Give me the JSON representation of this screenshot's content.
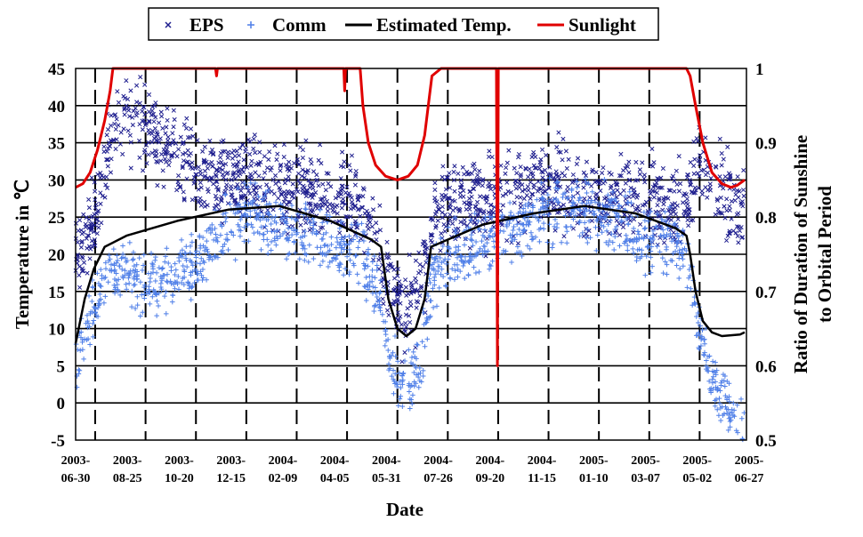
{
  "chart_data": {
    "type": "scatter",
    "title": "",
    "xlabel": "Date",
    "ylabel": "Temperature in ℃",
    "y2label_line1": "Ratio of Duration of Sunshine",
    "y2label_line2": "to Orbital Period",
    "ylim": [
      -5,
      45
    ],
    "y2lim": [
      0.5,
      1.0
    ],
    "yticks": [
      "45",
      "40",
      "35",
      "30",
      "25",
      "20",
      "15",
      "10",
      "5",
      "0",
      "-5"
    ],
    "y2ticks": [
      "1",
      "0.9",
      "0.8",
      "0.7",
      "0.6",
      "0.5"
    ],
    "x_ticks": [
      {
        "l1": "2003-",
        "l2": "06-30"
      },
      {
        "l1": "2003-",
        "l2": "08-25"
      },
      {
        "l1": "2003-",
        "l2": "10-20"
      },
      {
        "l1": "2003-",
        "l2": "12-15"
      },
      {
        "l1": "2004-",
        "l2": "02-09"
      },
      {
        "l1": "2004-",
        "l2": "04-05"
      },
      {
        "l1": "2004-",
        "l2": "05-31"
      },
      {
        "l1": "2004-",
        "l2": "07-26"
      },
      {
        "l1": "2004-",
        "l2": "09-20"
      },
      {
        "l1": "2004-",
        "l2": "11-15"
      },
      {
        "l1": "2005-",
        "l2": "01-10"
      },
      {
        "l1": "2005-",
        "l2": "03-07"
      },
      {
        "l1": "2005-",
        "l2": "05-02"
      },
      {
        "l1": "2005-",
        "l2": "06-27"
      }
    ],
    "x_range": [
      "2003-06-30",
      "2005-07-07"
    ],
    "grid": true,
    "legend_position": "top",
    "series": [
      {
        "name": "EPS",
        "kind": "scatter",
        "marker": "x",
        "color": "#1f1f8f",
        "axis": "left",
        "trend": [
          [
            "2003-06-30",
            20
          ],
          [
            "2003-07-20",
            24
          ],
          [
            "2003-08-10",
            36
          ],
          [
            "2003-08-25",
            38
          ],
          [
            "2003-09-20",
            37
          ],
          [
            "2003-10-20",
            33
          ],
          [
            "2003-11-20",
            30
          ],
          [
            "2003-12-15",
            31
          ],
          [
            "2004-01-10",
            30
          ],
          [
            "2004-02-09",
            29
          ],
          [
            "2004-03-10",
            28
          ],
          [
            "2004-04-05",
            28
          ],
          [
            "2004-05-10",
            27
          ],
          [
            "2004-05-25",
            22
          ],
          [
            "2004-06-10",
            15
          ],
          [
            "2004-06-25",
            12
          ],
          [
            "2004-07-10",
            14
          ],
          [
            "2004-07-26",
            24
          ],
          [
            "2004-08-20",
            27
          ],
          [
            "2004-09-20",
            27
          ],
          [
            "2004-10-20",
            28
          ],
          [
            "2004-11-15",
            30
          ],
          [
            "2004-12-15",
            29
          ],
          [
            "2005-01-10",
            28
          ],
          [
            "2005-02-10",
            28
          ],
          [
            "2005-03-07",
            28
          ],
          [
            "2005-04-05",
            27
          ],
          [
            "2005-05-02",
            26
          ],
          [
            "2005-05-15",
            33
          ],
          [
            "2005-06-01",
            30
          ],
          [
            "2005-06-20",
            27
          ],
          [
            "2005-07-05",
            26
          ]
        ],
        "spread": 4
      },
      {
        "name": "Comm",
        "kind": "scatter",
        "marker": "+",
        "color": "#4f7fe8",
        "axis": "left",
        "trend": [
          [
            "2003-06-30",
            5
          ],
          [
            "2003-07-15",
            12
          ],
          [
            "2003-08-10",
            18
          ],
          [
            "2003-08-25",
            17
          ],
          [
            "2003-09-20",
            16
          ],
          [
            "2003-10-20",
            17
          ],
          [
            "2003-11-20",
            20
          ],
          [
            "2003-12-15",
            24
          ],
          [
            "2004-01-10",
            25
          ],
          [
            "2004-02-09",
            24
          ],
          [
            "2004-03-10",
            22
          ],
          [
            "2004-04-05",
            21
          ],
          [
            "2004-05-10",
            20
          ],
          [
            "2004-05-31",
            13
          ],
          [
            "2004-06-15",
            4
          ],
          [
            "2004-06-30",
            2
          ],
          [
            "2004-07-15",
            6
          ],
          [
            "2004-07-26",
            18
          ],
          [
            "2004-08-20",
            20
          ],
          [
            "2004-09-20",
            21
          ],
          [
            "2004-10-20",
            23
          ],
          [
            "2004-11-15",
            25
          ],
          [
            "2004-12-15",
            26
          ],
          [
            "2005-01-10",
            26
          ],
          [
            "2005-02-10",
            25
          ],
          [
            "2005-03-07",
            23
          ],
          [
            "2005-04-05",
            22
          ],
          [
            "2005-05-02",
            21
          ],
          [
            "2005-05-10",
            14
          ],
          [
            "2005-05-25",
            5
          ],
          [
            "2005-06-10",
            0
          ],
          [
            "2005-06-27",
            -2
          ],
          [
            "2005-07-05",
            -3
          ]
        ],
        "spread": 3
      },
      {
        "name": "Estimated Temp.",
        "kind": "line",
        "color": "#000000",
        "axis": "left",
        "points": [
          [
            "2003-06-30",
            8
          ],
          [
            "2003-07-10",
            14
          ],
          [
            "2003-07-20",
            18
          ],
          [
            "2003-08-01",
            21
          ],
          [
            "2003-08-25",
            22.5
          ],
          [
            "2003-10-20",
            24.5
          ],
          [
            "2003-12-15",
            26
          ],
          [
            "2004-02-09",
            26.5
          ],
          [
            "2004-04-05",
            24.5
          ],
          [
            "2004-05-20",
            22
          ],
          [
            "2004-05-31",
            21
          ],
          [
            "2004-06-08",
            14
          ],
          [
            "2004-06-18",
            10
          ],
          [
            "2004-06-28",
            9
          ],
          [
            "2004-07-08",
            10
          ],
          [
            "2004-07-18",
            14
          ],
          [
            "2004-07-25",
            21
          ],
          [
            "2004-09-20",
            24
          ],
          [
            "2004-11-15",
            25.5
          ],
          [
            "2005-01-10",
            26.5
          ],
          [
            "2005-03-07",
            25.5
          ],
          [
            "2005-04-20",
            23.5
          ],
          [
            "2005-05-02",
            22.5
          ],
          [
            "2005-05-06",
            20
          ],
          [
            "2005-05-12",
            15
          ],
          [
            "2005-05-20",
            11
          ],
          [
            "2005-05-30",
            9.5
          ],
          [
            "2005-06-10",
            9
          ],
          [
            "2005-06-30",
            9.2
          ],
          [
            "2005-07-05",
            9.5
          ]
        ]
      },
      {
        "name": "Sunlight",
        "kind": "line",
        "color": "#e00000",
        "axis": "right",
        "points": [
          [
            "2003-06-30",
            0.84
          ],
          [
            "2003-07-08",
            0.845
          ],
          [
            "2003-07-16",
            0.86
          ],
          [
            "2003-07-24",
            0.89
          ],
          [
            "2003-08-01",
            0.93
          ],
          [
            "2003-08-07",
            0.97
          ],
          [
            "2003-08-10",
            1.0
          ],
          [
            "2003-12-01",
            1.0
          ],
          [
            "2003-12-02",
            0.99
          ],
          [
            "2003-12-03",
            1.0
          ],
          [
            "2004-04-20",
            1.0
          ],
          [
            "2004-04-21",
            0.97
          ],
          [
            "2004-04-22",
            1.0
          ],
          [
            "2004-05-08",
            1.0
          ],
          [
            "2004-05-11",
            0.95
          ],
          [
            "2004-05-17",
            0.9
          ],
          [
            "2004-05-25",
            0.87
          ],
          [
            "2004-06-05",
            0.855
          ],
          [
            "2004-06-18",
            0.85
          ],
          [
            "2004-06-30",
            0.855
          ],
          [
            "2004-07-10",
            0.87
          ],
          [
            "2004-07-18",
            0.91
          ],
          [
            "2004-07-23",
            0.96
          ],
          [
            "2004-07-26",
            0.99
          ],
          [
            "2004-08-05",
            1.0
          ],
          [
            "2004-10-05",
            1.0
          ],
          [
            "2004-10-06",
            0.6
          ],
          [
            "2004-10-07",
            1.0
          ],
          [
            "2005-05-02",
            1.0
          ],
          [
            "2005-05-06",
            0.99
          ],
          [
            "2005-05-12",
            0.95
          ],
          [
            "2005-05-20",
            0.9
          ],
          [
            "2005-05-30",
            0.86
          ],
          [
            "2005-06-10",
            0.845
          ],
          [
            "2005-06-20",
            0.84
          ],
          [
            "2005-06-27",
            0.843
          ],
          [
            "2005-07-05",
            0.85
          ]
        ]
      }
    ]
  }
}
